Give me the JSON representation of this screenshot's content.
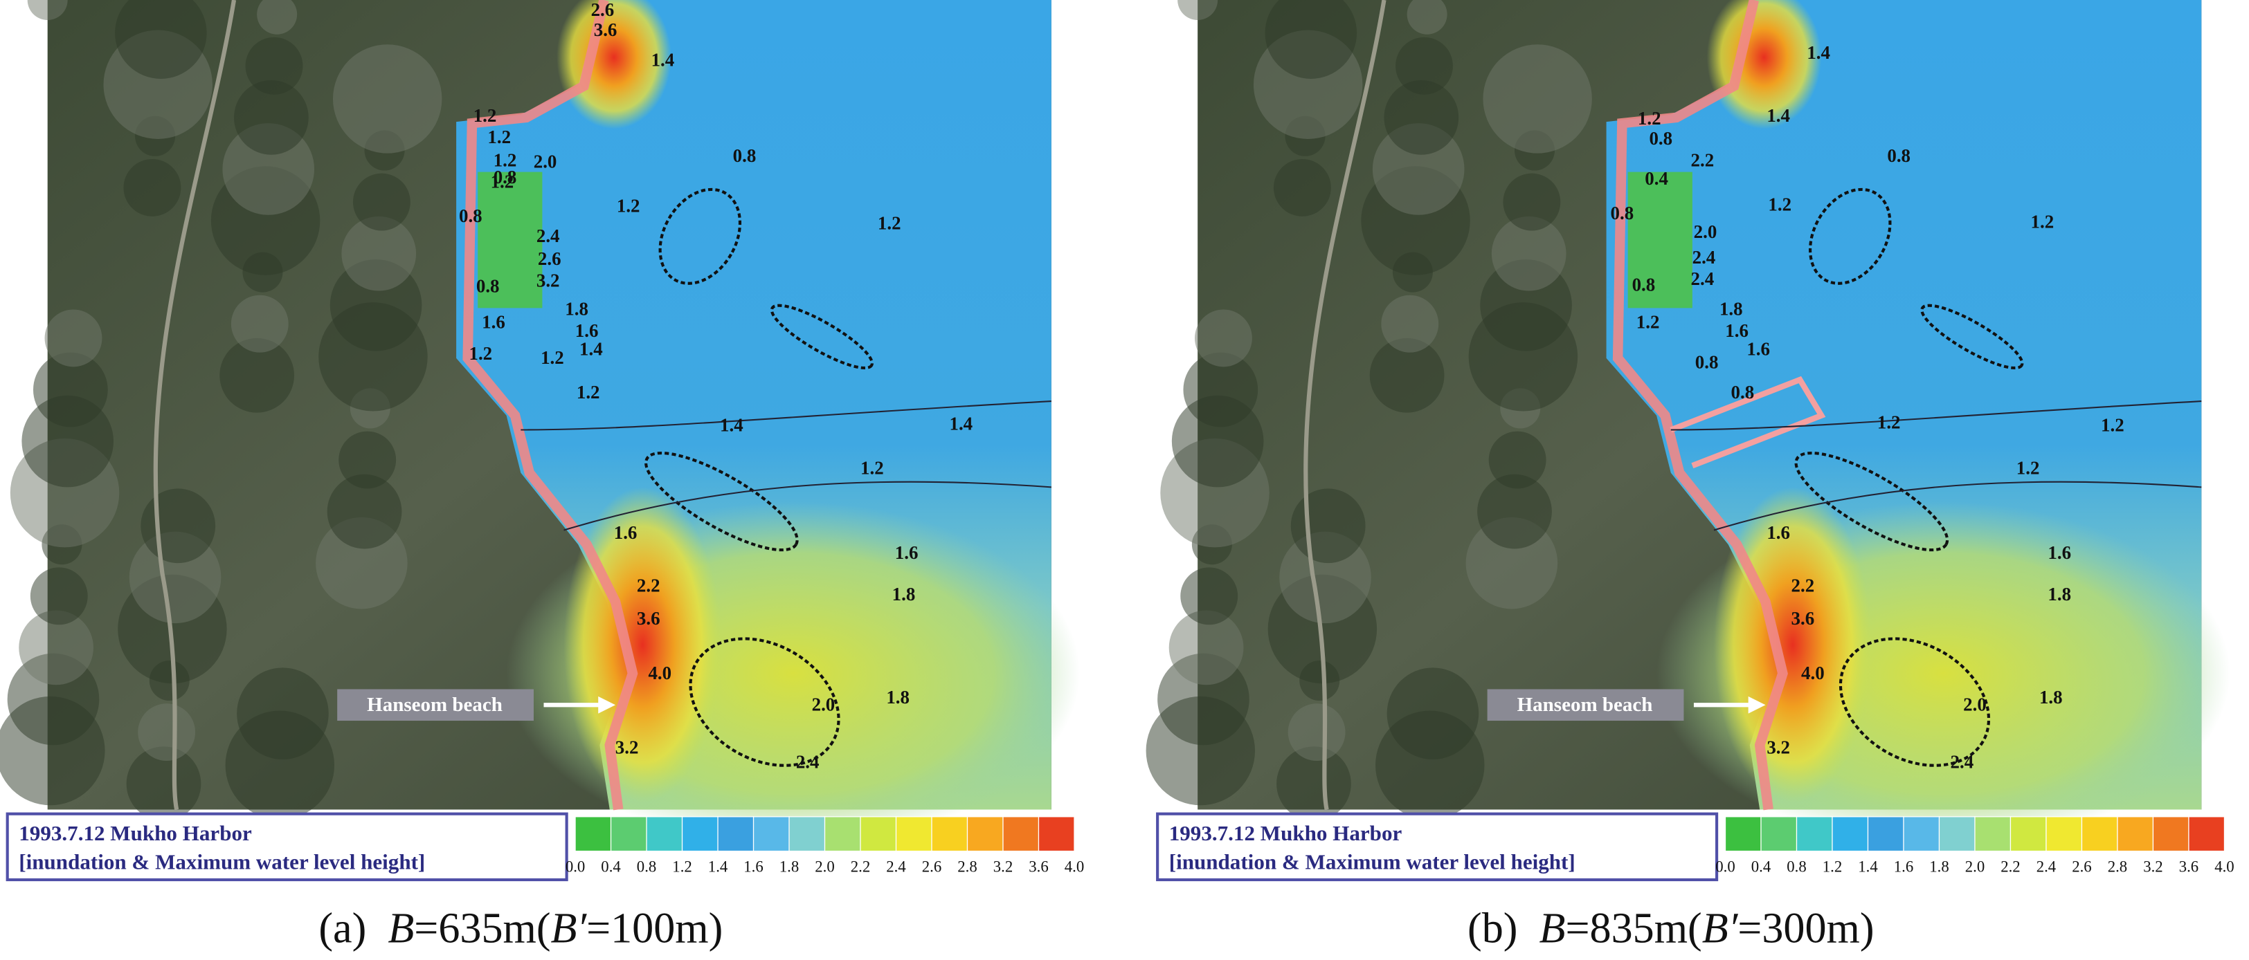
{
  "legend": {
    "lines": [
      "1993.7.12 Mukho Harbor",
      "[inundation & Maximum water level height]"
    ]
  },
  "annotation": "Hanseom beach",
  "colorbar": {
    "labels": [
      "0.0",
      "0.4",
      "0.8",
      "1.2",
      "1.4",
      "1.6",
      "1.8",
      "2.0",
      "2.2",
      "2.4",
      "2.6",
      "2.8",
      "3.2",
      "3.6",
      "4.0"
    ],
    "colors": [
      "#3cc040",
      "#5ccc70",
      "#40c8c8",
      "#30b0e8",
      "#3aa0e0",
      "#58b8e8",
      "#80d0d0",
      "#a8e070",
      "#d0e840",
      "#f0e830",
      "#f8d020",
      "#f8a820",
      "#f07820",
      "#e84020"
    ]
  },
  "panels": [
    {
      "label": "(a)",
      "caption": [
        "B",
        "=635m(",
        "B′",
        "=100m)"
      ],
      "contour_labels": [
        "2.6",
        "3.6",
        "1.4",
        "1.2",
        "1.2",
        "1.2",
        "1.2",
        "0.8",
        "2.0",
        "1.2",
        "1.2",
        "0.8",
        "2.4",
        "2.6",
        "3.2",
        "0.8",
        "1.8",
        "1.6",
        "1.6",
        "1.4",
        "1.2",
        "1.2",
        "1.2",
        "1.4",
        "1.4",
        "1.2",
        "1.6",
        "1.6",
        "1.8",
        "2.2",
        "3.6",
        "4.0",
        "2.0",
        "1.8",
        "3.2",
        "2.4",
        "0.8"
      ]
    },
    {
      "label": "(b)",
      "caption": [
        "B",
        "=835m(",
        "B′",
        "=300m)"
      ],
      "contour_labels": [
        "1.4",
        "1.2",
        "0.8",
        "0.4",
        "2.2",
        "1.4",
        "0.8",
        "1.2",
        "1.2",
        "0.8",
        "2.0",
        "2.4",
        "2.4",
        "0.8",
        "1.8",
        "1.6",
        "1.6",
        "1.2",
        "0.8",
        "0.8",
        "1.2",
        "1.2",
        "1.2",
        "1.6",
        "1.6",
        "1.8",
        "2.2",
        "3.6",
        "4.0",
        "2.0",
        "1.8",
        "3.2",
        "2.4"
      ]
    }
  ]
}
